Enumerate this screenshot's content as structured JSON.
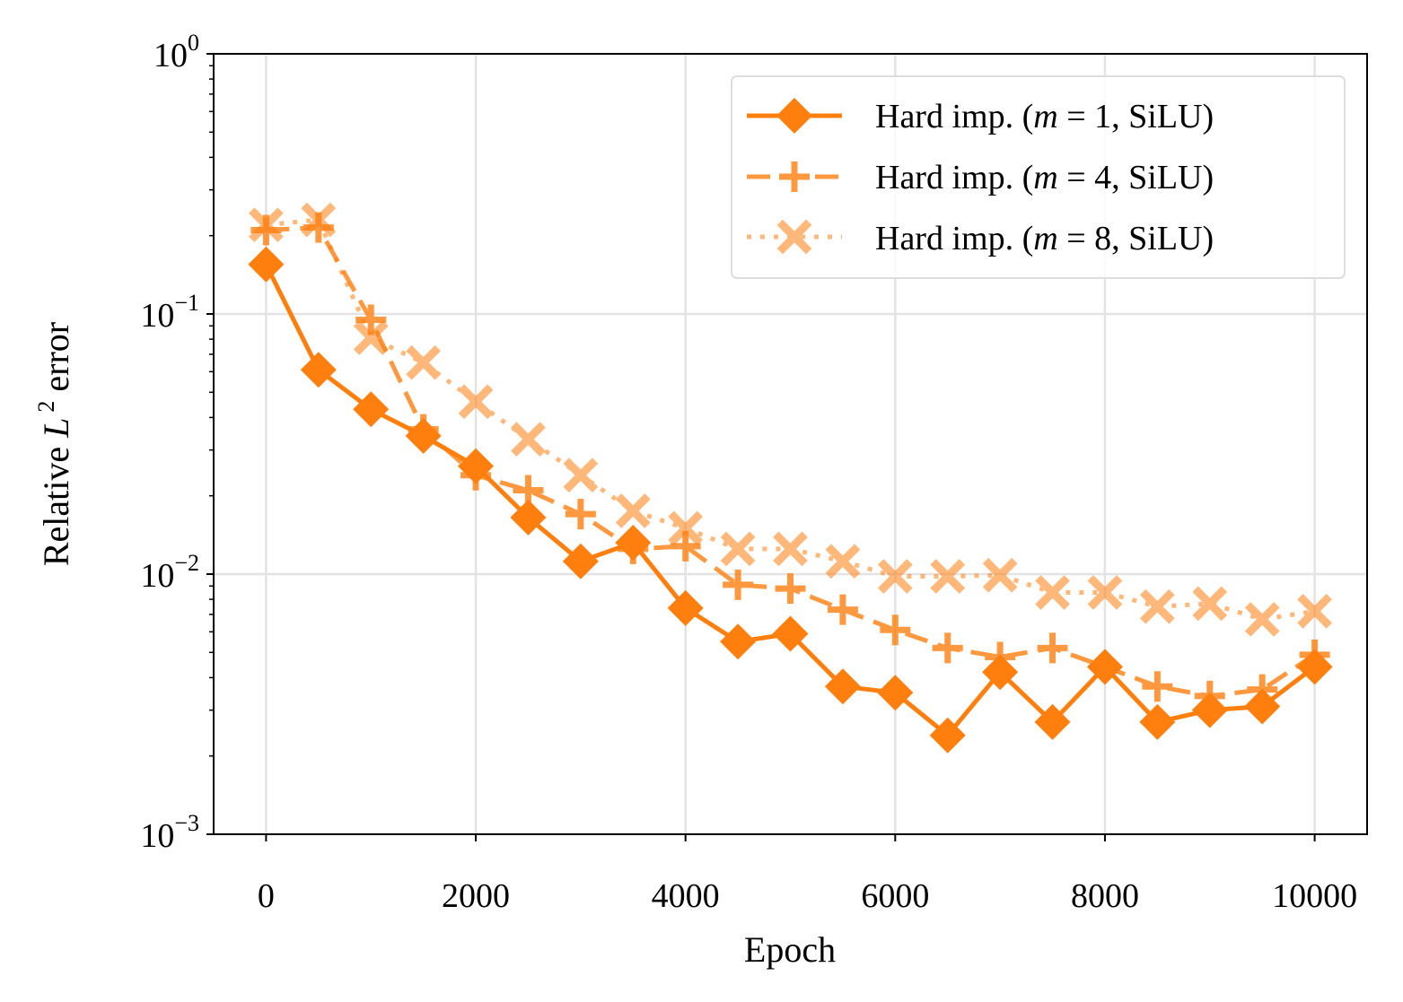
{
  "chart_data": {
    "type": "line",
    "title": "",
    "xlabel": "Epoch",
    "ylabel": {
      "prefix": "Relative ",
      "var": "L",
      "power": "2",
      "suffix": " error"
    },
    "yscale": "log",
    "xlim": [
      -500,
      10500
    ],
    "ylim": [
      0.001,
      1
    ],
    "xticks": [
      0,
      2000,
      4000,
      6000,
      8000,
      10000
    ],
    "yticks": [
      {
        "value": 0.001,
        "base": "10",
        "exp": "−3"
      },
      {
        "value": 0.01,
        "base": "10",
        "exp": "−2"
      },
      {
        "value": 0.1,
        "base": "10",
        "exp": "−1"
      },
      {
        "value": 1,
        "base": "10",
        "exp": "0"
      }
    ],
    "grid": true,
    "legend_position": "top-right",
    "x": [
      0,
      500,
      1000,
      1500,
      2000,
      2500,
      3000,
      3500,
      4000,
      4500,
      5000,
      5500,
      6000,
      6500,
      7000,
      7500,
      8000,
      8500,
      9000,
      9500,
      10000
    ],
    "series": [
      {
        "name": "Hard imp. (m = 1, SiLU)",
        "label": {
          "prefix": "Hard imp. (",
          "var": "m",
          "eq": " = 1",
          "suffix": ", SiLU)"
        },
        "color": "#ff7f0e",
        "opacity": 1.0,
        "linestyle": "solid",
        "marker": "diamond",
        "values": [
          0.155,
          0.061,
          0.043,
          0.034,
          0.026,
          0.0165,
          0.0112,
          0.0132,
          0.0074,
          0.0055,
          0.0059,
          0.0037,
          0.0035,
          0.0024,
          0.0042,
          0.0027,
          0.0044,
          0.0027,
          0.003,
          0.0031,
          0.0044
        ]
      },
      {
        "name": "Hard imp. (m = 4, SiLU)",
        "label": {
          "prefix": "Hard imp. (",
          "var": "m",
          "eq": " = 4",
          "suffix": ", SiLU)"
        },
        "color": "#ff7f0e",
        "opacity": 0.8,
        "linestyle": "dashed",
        "marker": "plus",
        "values": [
          0.21,
          0.215,
          0.095,
          0.036,
          0.024,
          0.021,
          0.017,
          0.0125,
          0.0128,
          0.0091,
          0.0088,
          0.0073,
          0.0061,
          0.0052,
          0.0048,
          0.0052,
          0.0044,
          0.0037,
          0.0034,
          0.0036,
          0.0049
        ]
      },
      {
        "name": "Hard imp. (m = 8, SiLU)",
        "label": {
          "prefix": "Hard imp. (",
          "var": "m",
          "eq": " = 8",
          "suffix": ", SiLU)"
        },
        "color": "#ff7f0e",
        "opacity": 0.55,
        "linestyle": "dotted",
        "marker": "x",
        "values": [
          0.22,
          0.23,
          0.081,
          0.065,
          0.046,
          0.033,
          0.024,
          0.0175,
          0.015,
          0.0125,
          0.0125,
          0.0112,
          0.0098,
          0.0098,
          0.0099,
          0.0085,
          0.0085,
          0.0075,
          0.0077,
          0.0067,
          0.0072
        ]
      }
    ]
  }
}
